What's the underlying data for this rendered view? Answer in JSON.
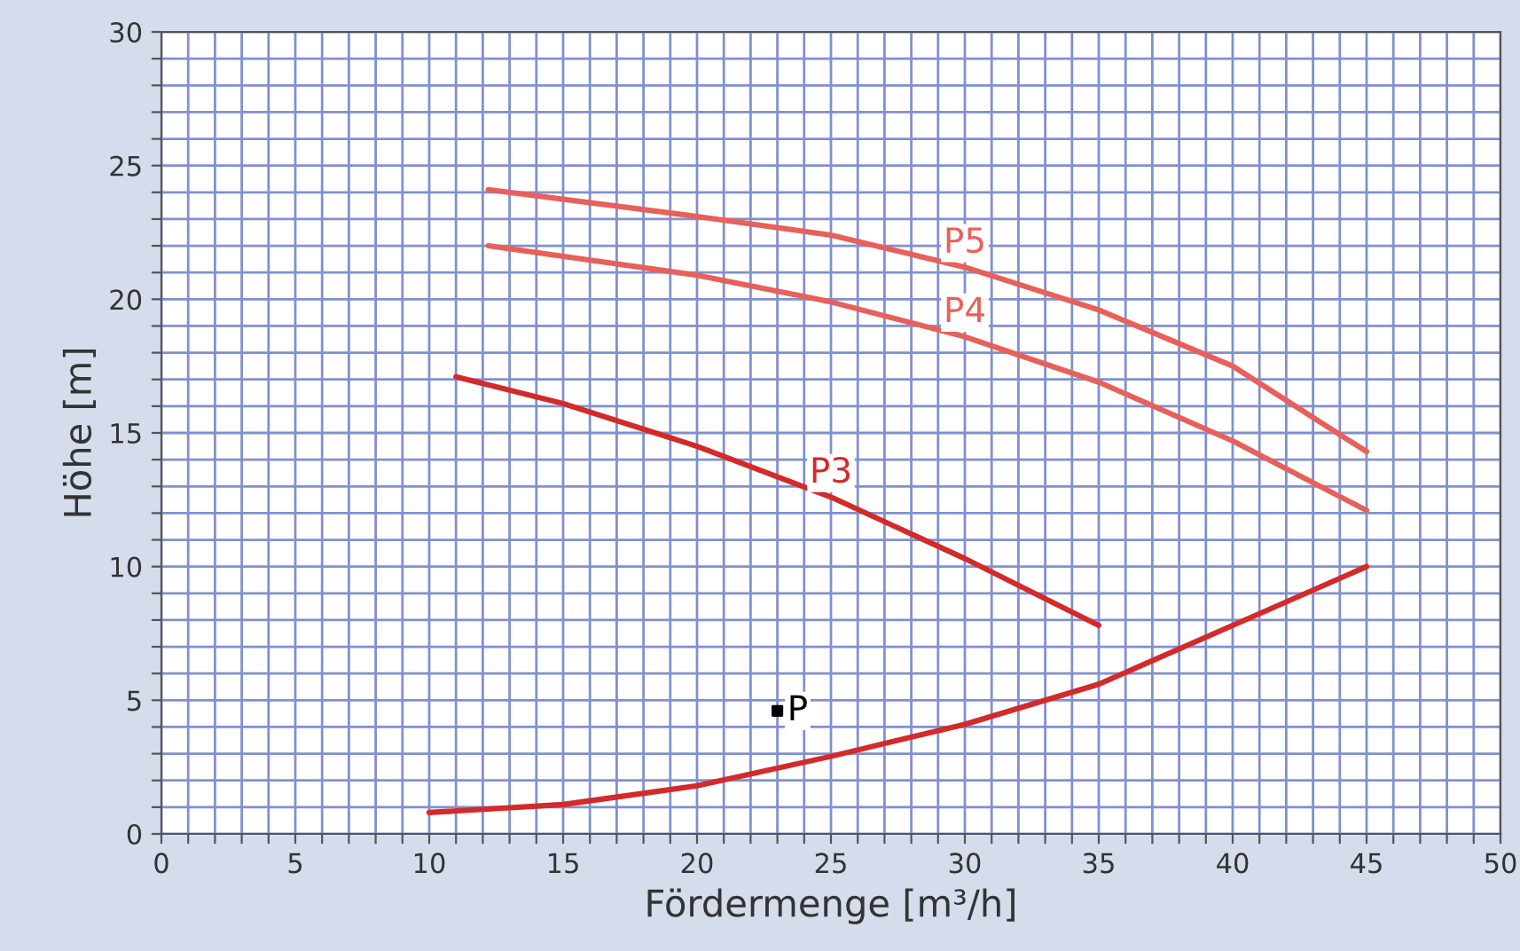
{
  "chart_data": {
    "type": "line",
    "xlabel": "Fördermenge [m³/h]",
    "ylabel": "Höhe [m]",
    "xlim": [
      0,
      50
    ],
    "ylim": [
      0,
      30
    ],
    "xticks": [
      0,
      {
        "value": 1,
        "label": null
      },
      {
        "value": 2,
        "label": null
      },
      {
        "value": 3,
        "label": null
      },
      {
        "value": 4,
        "label": null
      },
      5,
      {
        "value": 6,
        "label": null
      },
      {
        "value": 7,
        "label": null
      },
      {
        "value": 8,
        "label": null
      },
      {
        "value": 9,
        "label": null
      },
      10,
      {
        "value": 11,
        "label": null
      },
      {
        "value": 12,
        "label": null
      },
      {
        "value": 13,
        "label": null
      },
      {
        "value": 14,
        "label": null
      },
      15,
      {
        "value": 16,
        "label": null
      },
      {
        "value": 17,
        "label": null
      },
      {
        "value": 18,
        "label": null
      },
      {
        "value": 19,
        "label": null
      },
      20,
      {
        "value": 21,
        "label": null
      },
      {
        "value": 22,
        "label": null
      },
      {
        "value": 23,
        "label": null
      },
      {
        "value": 24,
        "label": null
      },
      25,
      {
        "value": 26,
        "label": null
      },
      {
        "value": 27,
        "label": null
      },
      {
        "value": 28,
        "label": null
      },
      {
        "value": 29,
        "label": null
      },
      30,
      {
        "value": 31,
        "label": null
      },
      {
        "value": 32,
        "label": null
      },
      {
        "value": 33,
        "label": null
      },
      {
        "value": 34,
        "label": null
      },
      35,
      {
        "value": 36,
        "label": null
      },
      {
        "value": 37,
        "label": null
      },
      {
        "value": 38,
        "label": null
      },
      {
        "value": 39,
        "label": null
      },
      40,
      {
        "value": 41,
        "label": null
      },
      {
        "value": 42,
        "label": null
      },
      {
        "value": 43,
        "label": null
      },
      {
        "value": 44,
        "label": null
      },
      45,
      {
        "value": 46,
        "label": null
      },
      {
        "value": 47,
        "label": null
      },
      {
        "value": 48,
        "label": null
      },
      {
        "value": 49,
        "label": null
      },
      50
    ],
    "yticks": [
      0,
      {
        "value": 1,
        "label": null
      },
      {
        "value": 2,
        "label": null
      },
      {
        "value": 3,
        "label": null
      },
      {
        "value": 4,
        "label": null
      },
      5,
      {
        "value": 6,
        "label": null
      },
      {
        "value": 7,
        "label": null
      },
      {
        "value": 8,
        "label": null
      },
      {
        "value": 9,
        "label": null
      },
      10,
      {
        "value": 11,
        "label": null
      },
      {
        "value": 12,
        "label": null
      },
      {
        "value": 13,
        "label": null
      },
      {
        "value": 14,
        "label": null
      },
      15,
      {
        "value": 16,
        "label": null
      },
      {
        "value": 17,
        "label": null
      },
      {
        "value": 18,
        "label": null
      },
      {
        "value": 19,
        "label": null
      },
      20,
      {
        "value": 21,
        "label": null
      },
      {
        "value": 22,
        "label": null
      },
      {
        "value": 23,
        "label": null
      },
      {
        "value": 24,
        "label": null
      },
      25,
      {
        "value": 26,
        "label": null
      },
      {
        "value": 27,
        "label": null
      },
      {
        "value": 28,
        "label": null
      },
      {
        "value": 29,
        "label": null
      },
      30
    ],
    "grid": true,
    "legend": false,
    "marker": "none",
    "line_style": "solid",
    "series": [
      {
        "name": "P5",
        "color": "#e8605a",
        "x": [
          12.2,
          20,
          25,
          30,
          35,
          40,
          45
        ],
        "values": [
          24.1,
          23.1,
          22.4,
          21.2,
          19.6,
          17.5,
          14.3
        ]
      },
      {
        "name": "P4",
        "color": "#e8605a",
        "x": [
          12.2,
          20,
          25,
          30,
          35,
          40,
          45
        ],
        "values": [
          22.0,
          20.9,
          19.9,
          18.6,
          16.9,
          14.7,
          12.1
        ]
      },
      {
        "name": "P3",
        "color": "#d42a2a",
        "x": [
          11,
          15,
          20,
          25,
          30,
          35
        ],
        "values": [
          17.1,
          16.1,
          14.5,
          12.6,
          10.3,
          7.8
        ]
      },
      {
        "color": "#d42a2a",
        "x": [
          10,
          15,
          20,
          25,
          30,
          35,
          40,
          45
        ],
        "values": [
          0.8,
          1.1,
          1.8,
          2.9,
          4.1,
          5.6,
          7.8,
          10.0
        ]
      },
      {
        "name": "P",
        "type": "scatter",
        "marker": "square",
        "color": "#000000",
        "x": [
          23
        ],
        "values": [
          4.6
        ]
      }
    ]
  }
}
